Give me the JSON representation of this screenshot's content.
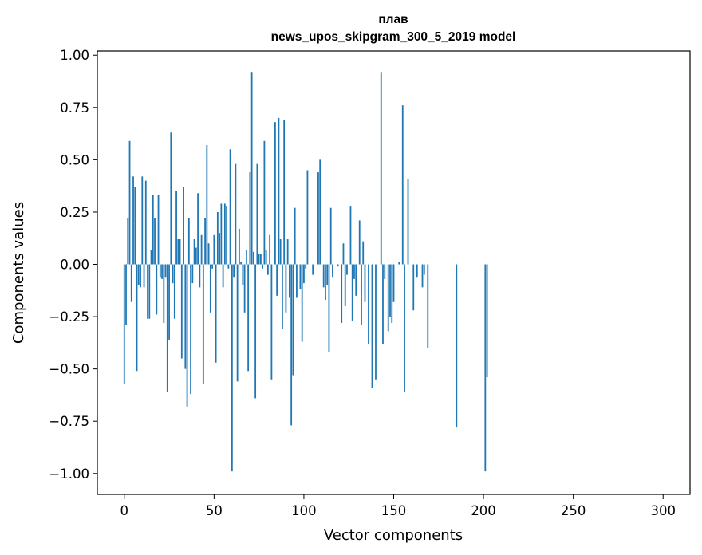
{
  "chart_data": {
    "type": "bar",
    "title_line1": "плав",
    "title_line2": "news_upos_skipgram_300_5_2019 model",
    "xlabel": "Vector components",
    "ylabel": "Components values",
    "xlim": [
      -15,
      315
    ],
    "ylim": [
      -1.1,
      1.02
    ],
    "xticks": [
      0,
      50,
      100,
      150,
      200,
      250,
      300
    ],
    "xtick_labels": [
      "0",
      "50",
      "100",
      "150",
      "200",
      "250",
      "300"
    ],
    "yticks": [
      1.0,
      0.75,
      0.5,
      0.25,
      0.0,
      -0.25,
      -0.5,
      -0.75,
      -1.0
    ],
    "ytick_labels": [
      "1.00",
      "0.75",
      "0.50",
      "0.25",
      "0.00",
      "−0.25",
      "−0.50",
      "−0.75",
      "−1.00"
    ],
    "bar_color": "#1f77b4",
    "values": [
      -0.57,
      -0.29,
      0.22,
      0.59,
      -0.18,
      0.42,
      0.37,
      -0.51,
      -0.1,
      -0.11,
      0.42,
      -0.11,
      0.4,
      -0.26,
      -0.26,
      0.07,
      0.33,
      0.22,
      -0.24,
      0.33,
      -0.06,
      -0.07,
      -0.28,
      -0.06,
      -0.61,
      -0.36,
      0.63,
      -0.09,
      -0.26,
      0.35,
      0.12,
      0.12,
      -0.45,
      0.37,
      -0.5,
      -0.68,
      0.22,
      -0.62,
      -0.09,
      0.12,
      0.08,
      0.34,
      -0.11,
      0.14,
      -0.57,
      0.22,
      0.57,
      0.1,
      -0.23,
      -0.02,
      0.14,
      -0.47,
      0.25,
      0.15,
      0.29,
      -0.11,
      0.29,
      0.28,
      -0.02,
      0.55,
      -0.99,
      -0.06,
      0.48,
      -0.56,
      0.17,
      0.01,
      -0.1,
      -0.23,
      0.07,
      -0.51,
      0.44,
      0.92,
      0.06,
      -0.64,
      0.48,
      0.05,
      0.05,
      -0.02,
      0.59,
      0.07,
      -0.05,
      0.14,
      -0.55,
      0.0,
      0.68,
      -0.15,
      0.7,
      0.12,
      -0.31,
      0.69,
      -0.23,
      0.12,
      -0.16,
      -0.77,
      -0.53,
      0.27,
      -0.16,
      0.0,
      -0.12,
      -0.37,
      -0.09,
      -0.02,
      0.45,
      0.0,
      0.0,
      -0.05,
      0.0,
      0.0,
      0.44,
      0.5,
      0.0,
      -0.11,
      -0.17,
      -0.1,
      -0.42,
      0.27,
      -0.06,
      0.0,
      0.0,
      -0.01,
      0.0,
      -0.28,
      0.1,
      -0.2,
      -0.05,
      0.0,
      0.28,
      -0.27,
      -0.07,
      -0.15,
      0.0,
      0.21,
      -0.29,
      0.11,
      -0.18,
      0.0,
      -0.38,
      0.0,
      -0.59,
      0.0,
      -0.55,
      0.0,
      0.0,
      0.92,
      -0.38,
      -0.07,
      0.0,
      -0.32,
      -0.25,
      -0.28,
      -0.18,
      0.0,
      0.0,
      0.01,
      0.0,
      0.76,
      -0.61,
      0.0,
      0.41,
      0.0,
      0.0,
      -0.22,
      0.0,
      -0.06,
      0.0,
      0.0,
      -0.11,
      -0.05,
      0.0,
      -0.4,
      0.0,
      0.0,
      0.0,
      0.0,
      0.0,
      0.0,
      0.0,
      0.0,
      0.0,
      0.0,
      0.0,
      0.0,
      0.0,
      0.0,
      0.0,
      -0.78,
      0.0,
      0.0,
      0.0,
      0.0,
      0.0,
      0.0,
      0.0,
      0.0,
      0.0,
      0.0,
      0.0,
      0.0,
      0.0,
      0.0,
      0.0,
      -0.99,
      -0.54,
      0.0,
      0.0,
      0.0,
      0.0,
      0.0,
      0.0,
      0.0,
      0.0,
      0.0,
      0.0,
      0.0,
      0.0,
      0.0,
      0.0,
      0.0,
      0.0,
      0.0,
      0.0,
      0.0,
      0.0,
      0.0,
      0.0,
      0.0,
      0.0,
      0.0,
      0.0,
      0.0,
      0.0,
      0.0,
      0.0,
      0.0,
      0.0,
      0.0,
      0.0,
      0.0,
      0.0,
      0.0,
      0.0,
      0.0,
      0.0,
      0.0,
      0.0,
      0.0,
      0.0,
      0.0,
      0.0,
      0.0,
      0.0,
      0.0,
      0.0,
      0.0,
      0.0,
      0.0,
      0.0,
      0.0,
      0.0,
      0.0,
      0.0,
      0.0,
      0.0,
      0.0,
      0.0,
      0.0,
      0.0,
      0.0,
      0.0,
      0.0,
      0.0,
      0.0,
      0.0,
      0.0,
      0.0,
      0.0,
      0.0,
      0.0,
      0.0,
      0.0,
      0.0,
      0.0,
      0.0,
      0.0,
      0.0,
      0.0,
      0.0,
      0.0,
      0.0,
      0.0,
      0.0,
      0.0,
      0.0,
      0.0,
      0.0,
      0.0,
      0.0,
      0.0,
      0.0,
      0.0
    ]
  }
}
